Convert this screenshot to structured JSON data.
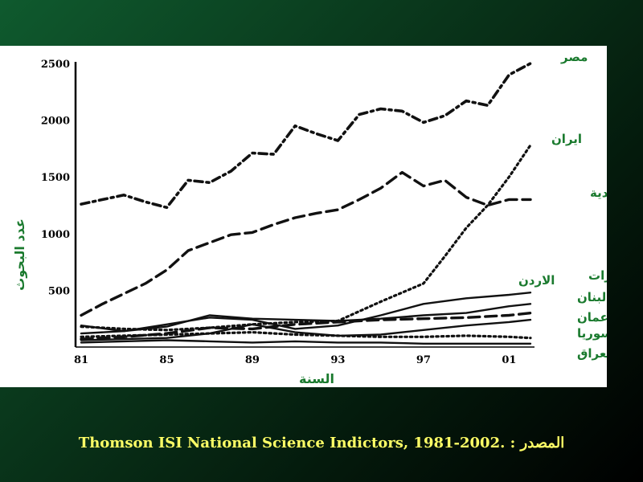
{
  "colors": {
    "accent": "#1a7a2e",
    "source_text": "#ffff66",
    "panel": "#ffffff"
  },
  "chart_data": {
    "type": "line",
    "title": "",
    "xlabel": "السنة",
    "ylabel": "عدد البحوث",
    "x": [
      81,
      85,
      89,
      93,
      97,
      101
    ],
    "x_tick_labels": [
      "81",
      "85",
      "89",
      "93",
      "97",
      "01"
    ],
    "xlim": [
      81,
      102
    ],
    "ylim": [
      0,
      2500
    ],
    "y_ticks": [
      500,
      1000,
      1500,
      2000,
      2500
    ],
    "grid": false,
    "series": [
      {
        "name": "مصر",
        "dash": "dashdot",
        "x": [
          81,
          82,
          83,
          84,
          85,
          86,
          87,
          88,
          89,
          90,
          91,
          92,
          93,
          94,
          95,
          96,
          97,
          98,
          99,
          100,
          101,
          102
        ],
        "values": [
          1260,
          1300,
          1340,
          1280,
          1230,
          1470,
          1450,
          1550,
          1710,
          1700,
          1950,
          1880,
          1820,
          2050,
          2100,
          2080,
          1980,
          2040,
          2170,
          2130,
          2400,
          2500
        ]
      },
      {
        "name": "ايران",
        "dash": "dotted",
        "x": [
          81,
          83,
          85,
          87,
          89,
          91,
          93,
          95,
          97,
          98,
          99,
          100,
          101,
          102
        ],
        "values": [
          180,
          160,
          150,
          170,
          200,
          220,
          230,
          400,
          560,
          800,
          1050,
          1250,
          1500,
          1780
        ]
      },
      {
        "name": "السعودية",
        "dash": "dashed",
        "x": [
          81,
          82,
          83,
          84,
          85,
          86,
          87,
          88,
          89,
          90,
          91,
          92,
          93,
          94,
          95,
          96,
          97,
          98,
          99,
          100,
          101,
          102
        ],
        "values": [
          280,
          380,
          470,
          560,
          680,
          850,
          920,
          990,
          1010,
          1080,
          1140,
          1180,
          1210,
          1300,
          1400,
          1540,
          1420,
          1470,
          1320,
          1250,
          1300,
          1300
        ]
      },
      {
        "name": "الاردن",
        "dash": "solid",
        "x": [
          81,
          83,
          85,
          87,
          89,
          91,
          93,
          95,
          97,
          99,
          101,
          102
        ],
        "values": [
          190,
          140,
          200,
          260,
          240,
          160,
          190,
          280,
          380,
          430,
          460,
          480
        ]
      },
      {
        "name": "الامارات",
        "dash": "solid",
        "x": [
          81,
          83,
          85,
          87,
          89,
          91,
          93,
          95,
          97,
          99,
          101,
          102
        ],
        "values": [
          120,
          140,
          180,
          280,
          250,
          240,
          230,
          250,
          280,
          300,
          360,
          380
        ]
      },
      {
        "name": "لبنان",
        "dash": "dashed",
        "x": [
          81,
          83,
          85,
          87,
          89,
          91,
          93,
          95,
          97,
          99,
          101,
          102
        ],
        "values": [
          70,
          90,
          120,
          170,
          160,
          200,
          220,
          240,
          250,
          260,
          280,
          300
        ]
      },
      {
        "name": "عمان",
        "dash": "solid",
        "x": [
          81,
          83,
          85,
          87,
          89,
          91,
          93,
          95,
          97,
          99,
          101,
          102
        ],
        "values": [
          60,
          70,
          80,
          120,
          200,
          130,
          100,
          110,
          150,
          190,
          220,
          240
        ]
      },
      {
        "name": "سوريا",
        "dash": "dotted",
        "x": [
          81,
          83,
          85,
          87,
          89,
          91,
          93,
          95,
          97,
          99,
          101,
          102
        ],
        "values": [
          90,
          100,
          110,
          120,
          130,
          110,
          100,
          90,
          90,
          100,
          90,
          80
        ]
      },
      {
        "name": "العراق",
        "dash": "solid",
        "x": [
          81,
          83,
          85,
          87,
          89,
          91,
          93,
          95,
          97,
          99,
          101,
          102
        ],
        "values": [
          40,
          50,
          60,
          50,
          40,
          50,
          40,
          40,
          30,
          30,
          30,
          30
        ]
      }
    ]
  },
  "source": "Thomson ISI National Science Indictors, 1981-2002. : المصدر"
}
